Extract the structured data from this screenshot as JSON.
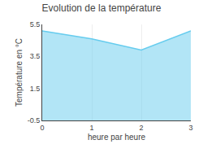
{
  "chart_data": {
    "type": "area",
    "title": "Evolution de la température",
    "xlabel": "heure par heure",
    "ylabel": "Température en °C",
    "x": [
      0,
      1,
      2,
      3
    ],
    "values": [
      5.1,
      4.6,
      3.9,
      5.1
    ],
    "color": "#66ccee",
    "xlim": [
      0,
      3
    ],
    "ylim": [
      -0.5,
      5.5
    ],
    "xticks": [
      0,
      1,
      2,
      3
    ],
    "yticks": [
      -0.5,
      1.5,
      3.5,
      5.5
    ],
    "grid": "x"
  }
}
